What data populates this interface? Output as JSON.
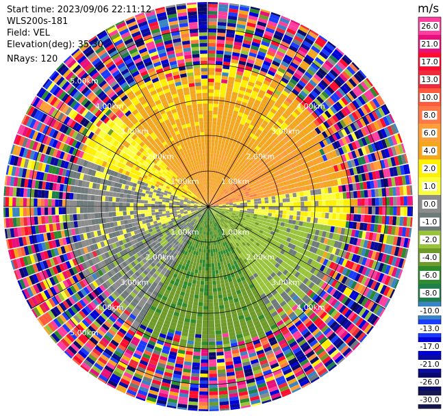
{
  "header": {
    "start_time": "Start time: 2023/09/06 22:11:12",
    "instrument": "WLS200s-181",
    "field": "Field: VEL",
    "elevation": "Elevation(deg): 35.30",
    "nrays": "NRays: 120"
  },
  "range_ring_labels": [
    "1.00km",
    "2.00km",
    "3.00km",
    "4.00km",
    "5.00km"
  ],
  "colorbar": {
    "unit": "m/s",
    "ticks": [
      "26.0",
      "21.0",
      "17.0",
      "13.0",
      "10.0",
      "8.0",
      "6.0",
      "4.0",
      "2.0",
      "1.0",
      "0.0",
      "-1.0",
      "-2.0",
      "-4.0",
      "-6.0",
      "-8.0",
      "-10.0",
      "-13.0",
      "-17.0",
      "-21.0",
      "-26.0",
      "-30.0"
    ],
    "colors": [
      "#ff3fa0",
      "#e8107a",
      "#ff0d2e",
      "#ee2b3c",
      "#ff5a3c",
      "#ff7a48",
      "#ff9f3a",
      "#f4a61e",
      "#ffef00",
      "#fbff3d",
      "#8c8c8c",
      "#6f7a7a",
      "#99c33a",
      "#6f9b2a",
      "#2e8b2e",
      "#1f7f4a",
      "#3a84c4",
      "#1a3cff",
      "#0000d8",
      "#0b0ba0",
      "#0a0a6a",
      "#161650"
    ]
  },
  "chart_data": {
    "type": "ppi",
    "field": "VEL",
    "units": "m/s",
    "nrays": 120,
    "elevation_deg": 35.3,
    "max_range_km": 5.75,
    "gate_km": 0.1,
    "colorbar_range": [
      -30.0,
      26.0
    ],
    "sector_means": [
      {
        "az_from": 315,
        "az_to": 45,
        "near": 4.0,
        "far": 2.0
      },
      {
        "az_from": 45,
        "az_to": 80,
        "near": 6.0,
        "far": 3.0
      },
      {
        "az_from": 80,
        "az_to": 100,
        "near": 0.0,
        "far": 1.0
      },
      {
        "az_from": 100,
        "az_to": 150,
        "near": -4.0,
        "far": -2.0
      },
      {
        "az_from": 150,
        "az_to": 210,
        "near": -6.0,
        "far": -5.0
      },
      {
        "az_from": 210,
        "az_to": 250,
        "near": -2.0,
        "far": -1.0
      },
      {
        "az_from": 250,
        "az_to": 290,
        "near": 0.0,
        "far": -1.0
      },
      {
        "az_from": 290,
        "az_to": 315,
        "near": 2.0,
        "far": 1.0
      }
    ],
    "noise_beyond_km": 4.0
  }
}
